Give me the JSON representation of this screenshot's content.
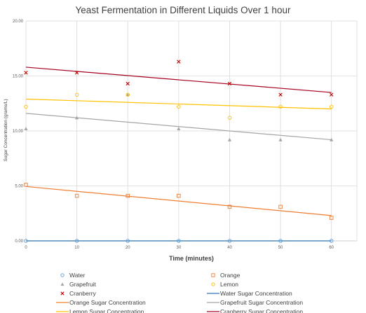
{
  "chart_data": {
    "type": "scatter",
    "title": "Yeast Fermentation in Different Liquids Over 1 hour",
    "xlabel": "Time (minutes)",
    "ylabel": "Sugar Concentration (grams/L)",
    "x": [
      0,
      10,
      20,
      30,
      40,
      50,
      60
    ],
    "x_ticks": [
      "0",
      "10",
      "20",
      "30",
      "40",
      "50",
      "60"
    ],
    "y_ticks": [
      "0.00",
      "5.00",
      "10.00",
      "15.00",
      "20.00"
    ],
    "xlim": [
      0,
      65
    ],
    "ylim": [
      0,
      20
    ],
    "grid": true,
    "legend_position": "bottom",
    "series": [
      {
        "name": "Water",
        "marker": "circle",
        "color": "#5b9bd5",
        "values": [
          0,
          0,
          0,
          0,
          0,
          0,
          0
        ]
      },
      {
        "name": "Orange",
        "marker": "square",
        "color": "#ed7d31",
        "values": [
          5.1,
          4.1,
          4.1,
          4.1,
          3.1,
          3.1,
          2.1
        ]
      },
      {
        "name": "Grapefruit",
        "marker": "triangle",
        "color": "#a5a5a5",
        "values": [
          10.2,
          11.2,
          13.3,
          10.2,
          9.2,
          9.2,
          9.2
        ]
      },
      {
        "name": "Lemon",
        "marker": "circle",
        "color": "#ffc000",
        "values": [
          12.2,
          13.3,
          13.3,
          12.2,
          11.2,
          12.2,
          12.2
        ]
      },
      {
        "name": "Cranberry",
        "marker": "x",
        "color": "#c00000",
        "values": [
          15.3,
          15.3,
          14.3,
          16.3,
          14.3,
          13.3,
          13.3
        ]
      }
    ],
    "trendlines": [
      {
        "name": "Water Sugar Concentration",
        "color": "#2e75b6",
        "start": [
          0,
          0
        ],
        "end": [
          60,
          0
        ]
      },
      {
        "name": "Orange Sugar Concentration",
        "color": "#ed7d31",
        "start": [
          0,
          4.95
        ],
        "end": [
          60,
          2.3
        ]
      },
      {
        "name": "Grapefruit Sugar Concentration",
        "color": "#a5a5a5",
        "start": [
          0,
          11.6
        ],
        "end": [
          60,
          9.2
        ]
      },
      {
        "name": "Lemon Sugar Concentration",
        "color": "#ffc000",
        "start": [
          0,
          12.9
        ],
        "end": [
          60,
          12.0
        ]
      },
      {
        "name": "Cranberry Sugar Concentration",
        "color": "#a50021",
        "start": [
          0,
          15.8
        ],
        "end": [
          60,
          13.5
        ]
      }
    ],
    "legend": {
      "entries": [
        {
          "label": "Water",
          "kind": "circle",
          "color": "#5b9bd5"
        },
        {
          "label": "Orange",
          "kind": "square",
          "color": "#ed7d31"
        },
        {
          "label": "Grapefruit",
          "kind": "triangle",
          "color": "#a5a5a5"
        },
        {
          "label": "Lemon",
          "kind": "circle",
          "color": "#ffc000"
        },
        {
          "label": "Cranberry",
          "kind": "x",
          "color": "#c00000"
        },
        {
          "label": "Water Sugar Concentration",
          "kind": "line",
          "color": "#2e75b6"
        },
        {
          "label": "Orange Sugar Concentration",
          "kind": "line",
          "color": "#ed7d31"
        },
        {
          "label": "Grapefruit Sugar Concentration",
          "kind": "line",
          "color": "#a5a5a5"
        },
        {
          "label": "Lemon Sugar Concentration",
          "kind": "line",
          "color": "#ffc000"
        },
        {
          "label": "Cranberry Sugar Concentration",
          "kind": "line",
          "color": "#a50021"
        }
      ]
    },
    "colors": {
      "grid": "#d9d9d9",
      "axis": "#bfbfbf"
    }
  }
}
